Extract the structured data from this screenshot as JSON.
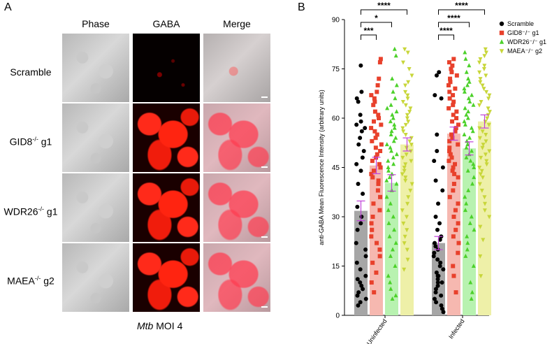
{
  "panel_a": {
    "letter": "A",
    "columns": [
      "Phase",
      "GABA",
      "Merge"
    ],
    "rows": [
      {
        "main": "Scramble",
        "sup": "",
        "tail": ""
      },
      {
        "main": "GID8",
        "sup": "-/-",
        "tail": " g1"
      },
      {
        "main": "WDR26",
        "sup": "-/-",
        "tail": " g1"
      },
      {
        "main": "MAEA",
        "sup": "-/-",
        "tail": " g2"
      }
    ],
    "footnote_italic": "Mtb",
    "footnote_rest": " MOI 4"
  },
  "panel_b": {
    "letter": "B"
  },
  "chart_data": {
    "type": "bar",
    "ylabel": "anti-GABA Mean Fluorescence Intensity (arbitrary units)",
    "ylim": [
      0,
      90
    ],
    "yticks": [
      0,
      15,
      30,
      45,
      60,
      75,
      90
    ],
    "categories": [
      "Uninfected",
      "Infected"
    ],
    "legend_position": "top-right",
    "series": [
      {
        "name": "Scramble",
        "marker": "circle",
        "color": "#000000",
        "bar_color": "#a6a6a6",
        "means": [
          31.8,
          22.0
        ],
        "sem": [
          3.0,
          2.0
        ],
        "points": [
          [
            76,
            68,
            66,
            65,
            61,
            59,
            58,
            57,
            56,
            54,
            52,
            50,
            48,
            46,
            44,
            40,
            37,
            33,
            30,
            28,
            26,
            22,
            20,
            18,
            16,
            14,
            12,
            11,
            10,
            9,
            8,
            7,
            6,
            5,
            4,
            3
          ],
          [
            74,
            73,
            67,
            66,
            55,
            50,
            47,
            45,
            41,
            38,
            34,
            30,
            28,
            26,
            24,
            23,
            22,
            21,
            20,
            19,
            18,
            17,
            16,
            15,
            14,
            13,
            12,
            12,
            11,
            10,
            10,
            9,
            8,
            7,
            6,
            5,
            4,
            3,
            2,
            1
          ]
        ]
      },
      {
        "name": "GID8⁻/⁻ g1",
        "marker": "square",
        "color": "#e8412c",
        "bar_color": "#f6b8b0",
        "means": [
          45.6,
          55.3
        ],
        "sem": [
          2.5,
          2.0
        ],
        "points": [
          [
            78,
            77,
            72,
            70,
            68,
            67,
            66,
            65,
            64,
            62,
            61,
            60,
            59,
            58,
            57,
            56,
            55,
            54,
            53,
            52,
            51,
            50,
            49,
            48,
            47,
            46,
            45,
            44,
            43,
            42,
            41,
            40,
            38,
            36,
            34,
            32,
            30,
            28,
            26,
            24,
            22,
            20,
            18,
            16,
            13,
            10,
            7
          ],
          [
            78,
            77,
            76,
            75,
            74,
            73,
            72,
            71,
            70,
            69,
            68,
            67,
            66,
            65,
            64,
            63,
            62,
            61,
            60,
            59,
            58,
            57,
            56,
            55,
            54,
            53,
            52,
            51,
            50,
            49,
            48,
            47,
            46,
            45,
            44,
            43,
            42,
            40,
            38,
            36,
            34,
            32,
            30,
            28,
            26,
            24,
            22,
            19,
            15,
            12,
            7
          ]
        ]
      },
      {
        "name": "WDR26⁻/⁻ g1",
        "marker": "triangle-up",
        "color": "#4cd12a",
        "bar_color": "#b8f2b0",
        "means": [
          40.3,
          50.8
        ],
        "sem": [
          2.5,
          2.0
        ],
        "points": [
          [
            81,
            79,
            72,
            70,
            68,
            66,
            64,
            63,
            62,
            61,
            60,
            59,
            58,
            57,
            56,
            55,
            54,
            53,
            52,
            51,
            50,
            49,
            48,
            47,
            46,
            45,
            44,
            43,
            42,
            41,
            40,
            38,
            36,
            34,
            32,
            30,
            28,
            26,
            24,
            22,
            20,
            18,
            15,
            12,
            10,
            8,
            6,
            5
          ],
          [
            80,
            78,
            76,
            74,
            72,
            71,
            70,
            69,
            68,
            67,
            66,
            65,
            64,
            63,
            62,
            61,
            60,
            59,
            58,
            57,
            56,
            55,
            54,
            53,
            52,
            51,
            50,
            49,
            48,
            47,
            46,
            45,
            44,
            42,
            40,
            38,
            36,
            34,
            32,
            30,
            28,
            26,
            24,
            22,
            20,
            18,
            15,
            10,
            7,
            5
          ]
        ]
      },
      {
        "name": "MAEA⁻/⁻ g2",
        "marker": "triangle-down",
        "color": "#c8d63a",
        "bar_color": "#eef0a8",
        "means": [
          52.0,
          59.0
        ],
        "sem": [
          2.0,
          2.0
        ],
        "points": [
          [
            81,
            80,
            77,
            75,
            73,
            71,
            70,
            68,
            67,
            66,
            65,
            64,
            63,
            62,
            61,
            60,
            59,
            58,
            57,
            56,
            55,
            54,
            53,
            52,
            51,
            50,
            49,
            48,
            47,
            46,
            45,
            44,
            43,
            42,
            41,
            40,
            38,
            36,
            34,
            32,
            30,
            28,
            26,
            24,
            22,
            20,
            17,
            14
          ],
          [
            81,
            80,
            79,
            78,
            77,
            76,
            75,
            74,
            73,
            72,
            71,
            70,
            69,
            68,
            67,
            66,
            65,
            64,
            63,
            62,
            61,
            60,
            59,
            58,
            57,
            56,
            55,
            54,
            53,
            52,
            51,
            50,
            49,
            48,
            47,
            46,
            45,
            44,
            43,
            42,
            40,
            38,
            36,
            34,
            32,
            30,
            27,
            23,
            18,
            12
          ]
        ]
      }
    ],
    "significance": [
      {
        "group": 0,
        "from": 0,
        "to": 1,
        "label": "***"
      },
      {
        "group": 0,
        "from": 0,
        "to": 2,
        "label": "*"
      },
      {
        "group": 0,
        "from": 0,
        "to": 3,
        "label": "****"
      },
      {
        "group": 1,
        "from": 0,
        "to": 1,
        "label": "****"
      },
      {
        "group": 1,
        "from": 0,
        "to": 2,
        "label": "****"
      },
      {
        "group": 1,
        "from": 0,
        "to": 3,
        "label": "****"
      }
    ]
  }
}
